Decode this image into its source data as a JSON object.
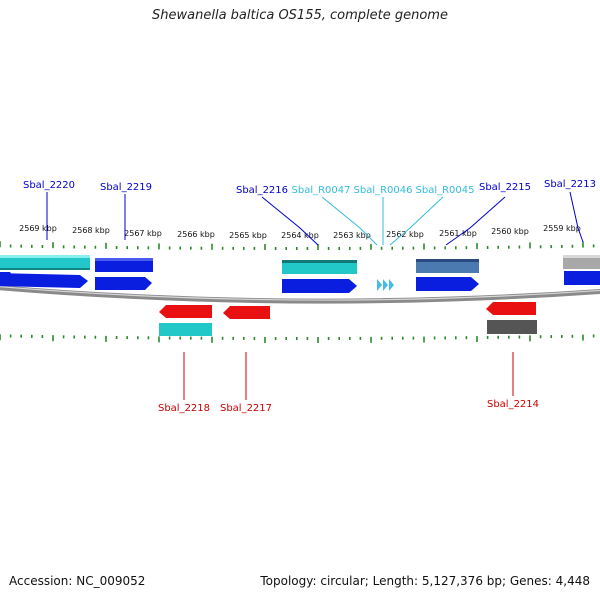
{
  "title": "Shewanella baltica OS155, complete genome",
  "footer": {
    "accession": "Accession: NC_009052",
    "summary": "Topology: circular; Length: 5,127,376 bp; Genes: 4,448"
  },
  "kbp_ticks": [
    "2569 kbp",
    "2568 kbp",
    "2567 kbp",
    "2566 kbp",
    "2565 kbp",
    "2564 kbp",
    "2563 kbp",
    "2562 kbp",
    "2561 kbp",
    "2560 kbp",
    "2559 kbp"
  ],
  "top_labels": [
    {
      "id": "sbal-2220",
      "text": "Sbal_2220",
      "color": "#0000cc"
    },
    {
      "id": "sbal-2219",
      "text": "Sbal_2219",
      "color": "#0000cc"
    },
    {
      "id": "sbal-2216",
      "text": "Sbal_2216",
      "color": "#0000cc"
    },
    {
      "id": "sbal-r0047",
      "text": "Sbal_R0047",
      "color": "#33bbdd"
    },
    {
      "id": "sbal-r0046",
      "text": "Sbal_R0046",
      "color": "#33bbdd"
    },
    {
      "id": "sbal-r0045",
      "text": "Sbal_R0045",
      "color": "#33bbdd"
    },
    {
      "id": "sbal-2215",
      "text": "Sbal_2215",
      "color": "#0000cc"
    },
    {
      "id": "sbal-2213",
      "text": "Sbal_2213",
      "color": "#0000cc"
    }
  ],
  "bottom_labels": [
    {
      "id": "sbal-2218",
      "text": "Sbal_2218",
      "color": "#cc0000"
    },
    {
      "id": "sbal-2217",
      "text": "Sbal_2217",
      "color": "#cc0000"
    },
    {
      "id": "sbal-2214",
      "text": "Sbal_2214",
      "color": "#cc0000"
    }
  ],
  "colors": {
    "forward_gene": "#0a1ee0",
    "reverse_gene": "#e81010",
    "cog_cyan": "#22c8c8",
    "cog_steel": "#4a7ab0",
    "cog_gray": "#a0a0a0",
    "cog_dark": "#555555",
    "trna": "#44bbee",
    "backbone": "#888888",
    "tick": "#2a8a2a"
  }
}
